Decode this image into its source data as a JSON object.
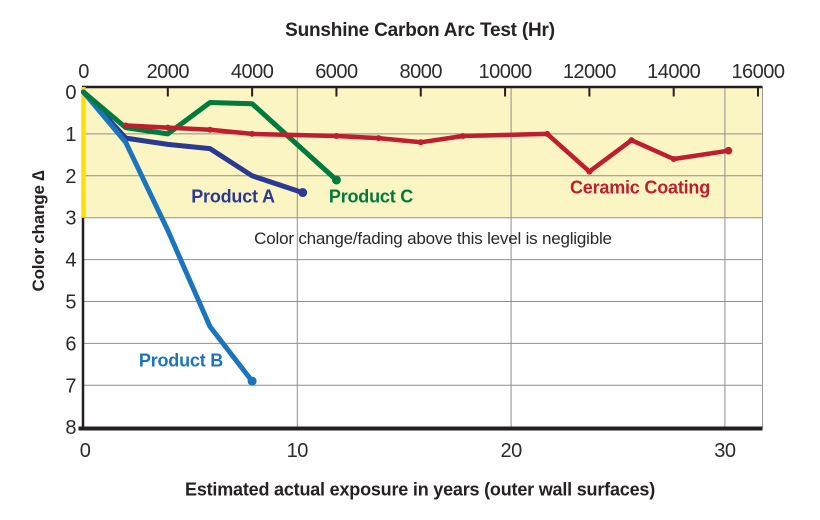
{
  "chart_data": {
    "type": "line",
    "title": "Sunshine Carbon Arc Test (Hr)",
    "x_top_axis": {
      "label": "Sunshine Carbon Arc Test (Hr)",
      "unit": "hours",
      "ticks": [
        0,
        2000,
        4000,
        6000,
        8000,
        10000,
        12000,
        14000,
        16000
      ],
      "range": [
        0,
        16100
      ]
    },
    "x_bottom_axis": {
      "label": "Estimated actual exposure in years (outer wall surfaces)",
      "unit": "years",
      "ticks": [
        0,
        10,
        20,
        30
      ],
      "range": [
        0,
        31.8
      ]
    },
    "y_axis": {
      "label": "Color change ∆",
      "ticks": [
        0,
        1,
        2,
        3,
        4,
        5,
        6,
        7,
        8
      ],
      "range": [
        0,
        8
      ],
      "inverted": true
    },
    "negligible_band": {
      "y_from": 0,
      "y_to": 3,
      "fill_color": "#FAF5C3",
      "edge_color": "#FFE100",
      "note": "Color change/fading above this level is negligible"
    },
    "grid": {
      "horizontal_at": [
        1,
        2,
        3,
        4,
        5,
        6,
        7
      ],
      "vertical_at_years": [
        10,
        20,
        30
      ],
      "color": "#8f8f8f"
    },
    "series": [
      {
        "name": "Product A",
        "color": "#2B3990",
        "x_unit": "hours",
        "points": [
          [
            0,
            0
          ],
          [
            1000,
            1.1
          ],
          [
            2000,
            1.25
          ],
          [
            3000,
            1.35
          ],
          [
            4000,
            2.0
          ],
          [
            5200,
            2.4
          ]
        ]
      },
      {
        "name": "Product B",
        "color": "#1B75BC",
        "x_unit": "hours",
        "points": [
          [
            0,
            0
          ],
          [
            1000,
            1.2
          ],
          [
            2000,
            3.3
          ],
          [
            3000,
            5.6
          ],
          [
            4000,
            6.9
          ]
        ]
      },
      {
        "name": "Product C",
        "color": "#007A3D",
        "x_unit": "hours",
        "points": [
          [
            0,
            0
          ],
          [
            1000,
            0.85
          ],
          [
            2000,
            1.0
          ],
          [
            3000,
            0.25
          ],
          [
            4000,
            0.28
          ],
          [
            6000,
            2.1
          ]
        ]
      },
      {
        "name": "Ceramic Coating",
        "color": "#BE1E2D",
        "x_unit": "hours",
        "points": [
          [
            1000,
            0.8
          ],
          [
            2000,
            0.85
          ],
          [
            3000,
            0.9
          ],
          [
            4000,
            1.0
          ],
          [
            6000,
            1.05
          ],
          [
            7000,
            1.1
          ],
          [
            8000,
            1.2
          ],
          [
            9000,
            1.05
          ],
          [
            11000,
            1.0
          ],
          [
            12000,
            1.9
          ],
          [
            13000,
            1.15
          ],
          [
            14000,
            1.6
          ],
          [
            15300,
            1.4
          ]
        ]
      }
    ]
  }
}
